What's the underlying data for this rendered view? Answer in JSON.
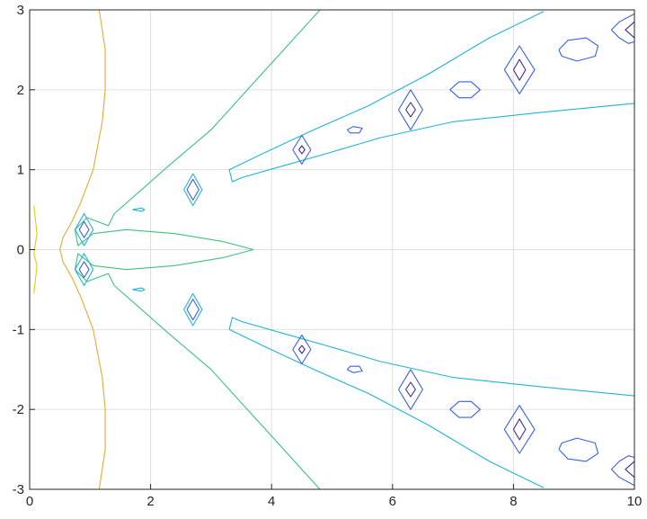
{
  "chart_data": {
    "type": "contour",
    "title": "",
    "xlabel": "",
    "ylabel": "",
    "xlim": [
      0,
      10
    ],
    "ylim": [
      -3,
      3
    ],
    "grid": true,
    "x_ticks": [
      0,
      2,
      4,
      6,
      8,
      10
    ],
    "y_ticks": [
      3,
      2,
      1,
      0,
      -1,
      -2,
      -3
    ],
    "x_tick_labels": [
      "0",
      "2",
      "4",
      "6",
      "8",
      "10"
    ],
    "y_tick_labels": [
      "3",
      "2",
      "1",
      "0",
      "-1",
      "-2",
      "-3"
    ],
    "colors": {
      "axis": "#262626",
      "grid": "#dfdfdf",
      "yellow": "#f0c419",
      "orange": "#e5ab2f",
      "green": "#3cc27d",
      "cyan": "#1fb4d6",
      "blue": "#3a5fe8",
      "indigo": "#3b2a9a"
    },
    "contours": [
      {
        "level": "yellow",
        "points": [
          [
            0.07,
            0.55
          ],
          [
            0.12,
            0.2
          ],
          [
            0.07,
            -0.05
          ]
        ]
      },
      {
        "level": "yellow",
        "points": [
          [
            0.07,
            -0.05
          ],
          [
            0.12,
            -0.2
          ],
          [
            0.07,
            -0.55
          ]
        ]
      },
      {
        "level": "orange",
        "points": [
          [
            1.15,
            3.0
          ],
          [
            1.25,
            2.5
          ],
          [
            1.25,
            2.0
          ],
          [
            1.2,
            1.6
          ],
          [
            1.05,
            1.0
          ],
          [
            0.85,
            0.6
          ],
          [
            0.7,
            0.35
          ],
          [
            0.55,
            0.15
          ],
          [
            0.5,
            0.0
          ],
          [
            0.55,
            -0.15
          ],
          [
            0.7,
            -0.35
          ],
          [
            0.85,
            -0.6
          ],
          [
            1.05,
            -1.0
          ],
          [
            1.2,
            -1.6
          ],
          [
            1.25,
            -2.0
          ],
          [
            1.25,
            -2.5
          ],
          [
            1.15,
            -3.0
          ]
        ]
      },
      {
        "level": "green",
        "points": [
          [
            4.8,
            3.0
          ],
          [
            4.2,
            2.5
          ],
          [
            3.6,
            2.0
          ],
          [
            3.0,
            1.5
          ],
          [
            2.3,
            1.05
          ],
          [
            1.85,
            0.75
          ],
          [
            1.4,
            0.45
          ],
          [
            1.3,
            0.3
          ],
          [
            0.95,
            0.4
          ],
          [
            0.75,
            0.25
          ],
          [
            0.8,
            0.05
          ],
          [
            1.05,
            0.2
          ],
          [
            1.6,
            0.25
          ],
          [
            2.4,
            0.2
          ],
          [
            3.2,
            0.1
          ],
          [
            3.7,
            0.0
          ],
          [
            3.2,
            -0.1
          ],
          [
            2.4,
            -0.2
          ],
          [
            1.6,
            -0.25
          ],
          [
            1.05,
            -0.2
          ],
          [
            0.8,
            -0.05
          ],
          [
            0.75,
            -0.25
          ],
          [
            0.95,
            -0.4
          ],
          [
            1.3,
            -0.3
          ],
          [
            1.4,
            -0.45
          ],
          [
            1.85,
            -0.75
          ],
          [
            2.3,
            -1.05
          ],
          [
            3.0,
            -1.5
          ],
          [
            3.6,
            -2.0
          ],
          [
            4.2,
            -2.5
          ],
          [
            4.8,
            -3.0
          ]
        ]
      },
      {
        "level": "cyan",
        "points": [
          [
            8.5,
            2.98
          ],
          [
            7.6,
            2.65
          ],
          [
            6.6,
            2.2
          ],
          [
            5.6,
            1.8
          ],
          [
            4.7,
            1.5
          ],
          [
            3.85,
            1.2
          ],
          [
            3.3,
            1.0
          ],
          [
            3.35,
            0.85
          ],
          [
            3.5,
            0.9
          ],
          [
            4.2,
            1.05
          ],
          [
            4.9,
            1.2
          ],
          [
            5.8,
            1.4
          ],
          [
            7.0,
            1.6
          ],
          [
            8.5,
            1.72
          ],
          [
            10.0,
            1.83
          ]
        ]
      },
      {
        "level": "cyan",
        "points": [
          [
            8.5,
            -2.98
          ],
          [
            7.6,
            -2.65
          ],
          [
            6.6,
            -2.2
          ],
          [
            5.6,
            -1.8
          ],
          [
            4.7,
            -1.5
          ],
          [
            3.85,
            -1.2
          ],
          [
            3.3,
            -1.0
          ],
          [
            3.35,
            -0.85
          ],
          [
            3.5,
            -0.9
          ],
          [
            4.2,
            -1.05
          ],
          [
            4.9,
            -1.2
          ],
          [
            5.8,
            -1.4
          ],
          [
            7.0,
            -1.6
          ],
          [
            8.5,
            -1.72
          ],
          [
            10.0,
            -1.83
          ]
        ]
      },
      {
        "level": "cyan",
        "points": [
          [
            0.75,
            0.25
          ],
          [
            0.9,
            0.45
          ],
          [
            1.05,
            0.25
          ],
          [
            0.9,
            0.05
          ],
          [
            0.75,
            0.25
          ]
        ]
      },
      {
        "level": "cyan",
        "points": [
          [
            0.75,
            -0.25
          ],
          [
            0.9,
            -0.05
          ],
          [
            1.05,
            -0.25
          ],
          [
            0.9,
            -0.45
          ],
          [
            0.75,
            -0.25
          ]
        ]
      },
      {
        "level": "cyan",
        "points": [
          [
            2.55,
            0.75
          ],
          [
            2.7,
            0.95
          ],
          [
            2.85,
            0.75
          ],
          [
            2.7,
            0.55
          ],
          [
            2.55,
            0.75
          ]
        ]
      },
      {
        "level": "cyan",
        "points": [
          [
            2.55,
            -0.75
          ],
          [
            2.7,
            -0.55
          ],
          [
            2.85,
            -0.75
          ],
          [
            2.7,
            -0.95
          ],
          [
            2.55,
            -0.75
          ]
        ]
      },
      {
        "level": "cyan",
        "points": [
          [
            1.7,
            0.5
          ],
          [
            1.85,
            0.52
          ],
          [
            1.9,
            0.5
          ],
          [
            1.85,
            0.48
          ],
          [
            1.7,
            0.5
          ]
        ]
      },
      {
        "level": "cyan",
        "points": [
          [
            1.7,
            -0.5
          ],
          [
            1.85,
            -0.48
          ],
          [
            1.9,
            -0.5
          ],
          [
            1.85,
            -0.52
          ],
          [
            1.7,
            -0.5
          ]
        ]
      },
      {
        "level": "blue",
        "points": [
          [
            0.82,
            0.25
          ],
          [
            0.9,
            0.35
          ],
          [
            0.98,
            0.25
          ],
          [
            0.9,
            0.15
          ],
          [
            0.82,
            0.25
          ]
        ]
      },
      {
        "level": "blue",
        "points": [
          [
            0.82,
            -0.25
          ],
          [
            0.9,
            -0.15
          ],
          [
            0.98,
            -0.25
          ],
          [
            0.9,
            -0.35
          ],
          [
            0.82,
            -0.25
          ]
        ]
      },
      {
        "level": "blue",
        "points": [
          [
            2.6,
            0.75
          ],
          [
            2.7,
            0.88
          ],
          [
            2.8,
            0.75
          ],
          [
            2.7,
            0.62
          ],
          [
            2.6,
            0.75
          ]
        ]
      },
      {
        "level": "blue",
        "points": [
          [
            2.6,
            -0.75
          ],
          [
            2.7,
            -0.62
          ],
          [
            2.8,
            -0.75
          ],
          [
            2.7,
            -0.88
          ],
          [
            2.6,
            -0.75
          ]
        ]
      },
      {
        "level": "blue",
        "points": [
          [
            4.35,
            1.25
          ],
          [
            4.5,
            1.43
          ],
          [
            4.65,
            1.25
          ],
          [
            4.5,
            1.07
          ],
          [
            4.35,
            1.25
          ]
        ]
      },
      {
        "level": "blue",
        "points": [
          [
            4.35,
            -1.25
          ],
          [
            4.5,
            -1.07
          ],
          [
            4.65,
            -1.25
          ],
          [
            4.5,
            -1.43
          ],
          [
            4.35,
            -1.25
          ]
        ]
      },
      {
        "level": "blue",
        "points": [
          [
            6.1,
            1.75
          ],
          [
            6.3,
            2.0
          ],
          [
            6.5,
            1.75
          ],
          [
            6.3,
            1.5
          ],
          [
            6.1,
            1.75
          ]
        ]
      },
      {
        "level": "blue",
        "points": [
          [
            6.1,
            -1.75
          ],
          [
            6.3,
            -1.5
          ],
          [
            6.5,
            -1.75
          ],
          [
            6.3,
            -2.0
          ],
          [
            6.1,
            -1.75
          ]
        ]
      },
      {
        "level": "blue",
        "points": [
          [
            7.85,
            2.25
          ],
          [
            8.1,
            2.55
          ],
          [
            8.35,
            2.25
          ],
          [
            8.1,
            1.95
          ],
          [
            7.85,
            2.25
          ]
        ]
      },
      {
        "level": "blue",
        "points": [
          [
            7.85,
            -2.25
          ],
          [
            8.1,
            -1.95
          ],
          [
            8.35,
            -2.25
          ],
          [
            8.1,
            -2.55
          ],
          [
            7.85,
            -2.25
          ]
        ]
      },
      {
        "level": "blue",
        "points": [
          [
            5.25,
            1.5
          ],
          [
            5.35,
            1.54
          ],
          [
            5.5,
            1.52
          ],
          [
            5.45,
            1.46
          ],
          [
            5.3,
            1.46
          ],
          [
            5.25,
            1.5
          ]
        ]
      },
      {
        "level": "blue",
        "points": [
          [
            5.25,
            -1.5
          ],
          [
            5.3,
            -1.46
          ],
          [
            5.45,
            -1.46
          ],
          [
            5.5,
            -1.52
          ],
          [
            5.35,
            -1.54
          ],
          [
            5.25,
            -1.5
          ]
        ]
      },
      {
        "level": "blue",
        "points": [
          [
            6.95,
            2.0
          ],
          [
            7.1,
            2.1
          ],
          [
            7.3,
            2.1
          ],
          [
            7.45,
            2.0
          ],
          [
            7.3,
            1.9
          ],
          [
            7.1,
            1.9
          ],
          [
            6.95,
            2.0
          ]
        ]
      },
      {
        "level": "blue",
        "points": [
          [
            6.95,
            -2.0
          ],
          [
            7.1,
            -1.9
          ],
          [
            7.3,
            -1.9
          ],
          [
            7.45,
            -2.0
          ],
          [
            7.3,
            -2.1
          ],
          [
            7.1,
            -2.1
          ],
          [
            6.95,
            -2.0
          ]
        ]
      },
      {
        "level": "blue",
        "points": [
          [
            8.75,
            2.5
          ],
          [
            8.9,
            2.62
          ],
          [
            9.2,
            2.65
          ],
          [
            9.4,
            2.55
          ],
          [
            9.35,
            2.42
          ],
          [
            9.05,
            2.36
          ],
          [
            8.8,
            2.42
          ],
          [
            8.75,
            2.5
          ]
        ]
      },
      {
        "level": "blue",
        "points": [
          [
            8.75,
            -2.5
          ],
          [
            8.8,
            -2.42
          ],
          [
            9.05,
            -2.36
          ],
          [
            9.35,
            -2.42
          ],
          [
            9.4,
            -2.55
          ],
          [
            9.2,
            -2.65
          ],
          [
            8.9,
            -2.62
          ],
          [
            8.75,
            -2.5
          ]
        ]
      },
      {
        "level": "blue",
        "points": [
          [
            10.0,
            2.95
          ],
          [
            9.75,
            2.85
          ],
          [
            9.62,
            2.75
          ],
          [
            9.75,
            2.65
          ],
          [
            9.9,
            2.58
          ],
          [
            10.0,
            2.6
          ]
        ]
      },
      {
        "level": "blue",
        "points": [
          [
            10.0,
            -2.95
          ],
          [
            9.75,
            -2.85
          ],
          [
            9.62,
            -2.75
          ],
          [
            9.75,
            -2.65
          ],
          [
            9.9,
            -2.58
          ],
          [
            10.0,
            -2.6
          ]
        ]
      },
      {
        "level": "indigo",
        "points": [
          [
            4.45,
            1.25
          ],
          [
            4.5,
            1.3
          ],
          [
            4.55,
            1.25
          ],
          [
            4.5,
            1.2
          ],
          [
            4.45,
            1.25
          ]
        ]
      },
      {
        "level": "indigo",
        "points": [
          [
            4.45,
            -1.25
          ],
          [
            4.5,
            -1.2
          ],
          [
            4.55,
            -1.25
          ],
          [
            4.5,
            -1.3
          ],
          [
            4.45,
            -1.25
          ]
        ]
      },
      {
        "level": "indigo",
        "points": [
          [
            6.22,
            1.75
          ],
          [
            6.3,
            1.84
          ],
          [
            6.38,
            1.75
          ],
          [
            6.3,
            1.66
          ],
          [
            6.22,
            1.75
          ]
        ]
      },
      {
        "level": "indigo",
        "points": [
          [
            6.22,
            -1.75
          ],
          [
            6.3,
            -1.66
          ],
          [
            6.38,
            -1.75
          ],
          [
            6.3,
            -1.84
          ],
          [
            6.22,
            -1.75
          ]
        ]
      },
      {
        "level": "indigo",
        "points": [
          [
            8.0,
            2.25
          ],
          [
            8.1,
            2.38
          ],
          [
            8.2,
            2.25
          ],
          [
            8.1,
            2.12
          ],
          [
            8.0,
            2.25
          ]
        ]
      },
      {
        "level": "indigo",
        "points": [
          [
            8.0,
            -2.25
          ],
          [
            8.1,
            -2.12
          ],
          [
            8.2,
            -2.25
          ],
          [
            8.1,
            -2.38
          ],
          [
            8.0,
            -2.25
          ]
        ]
      },
      {
        "level": "indigo",
        "points": [
          [
            10.0,
            2.85
          ],
          [
            9.85,
            2.75
          ],
          [
            10.0,
            2.65
          ]
        ]
      },
      {
        "level": "indigo",
        "points": [
          [
            10.0,
            -2.85
          ],
          [
            9.85,
            -2.75
          ],
          [
            10.0,
            -2.65
          ]
        ]
      }
    ]
  }
}
